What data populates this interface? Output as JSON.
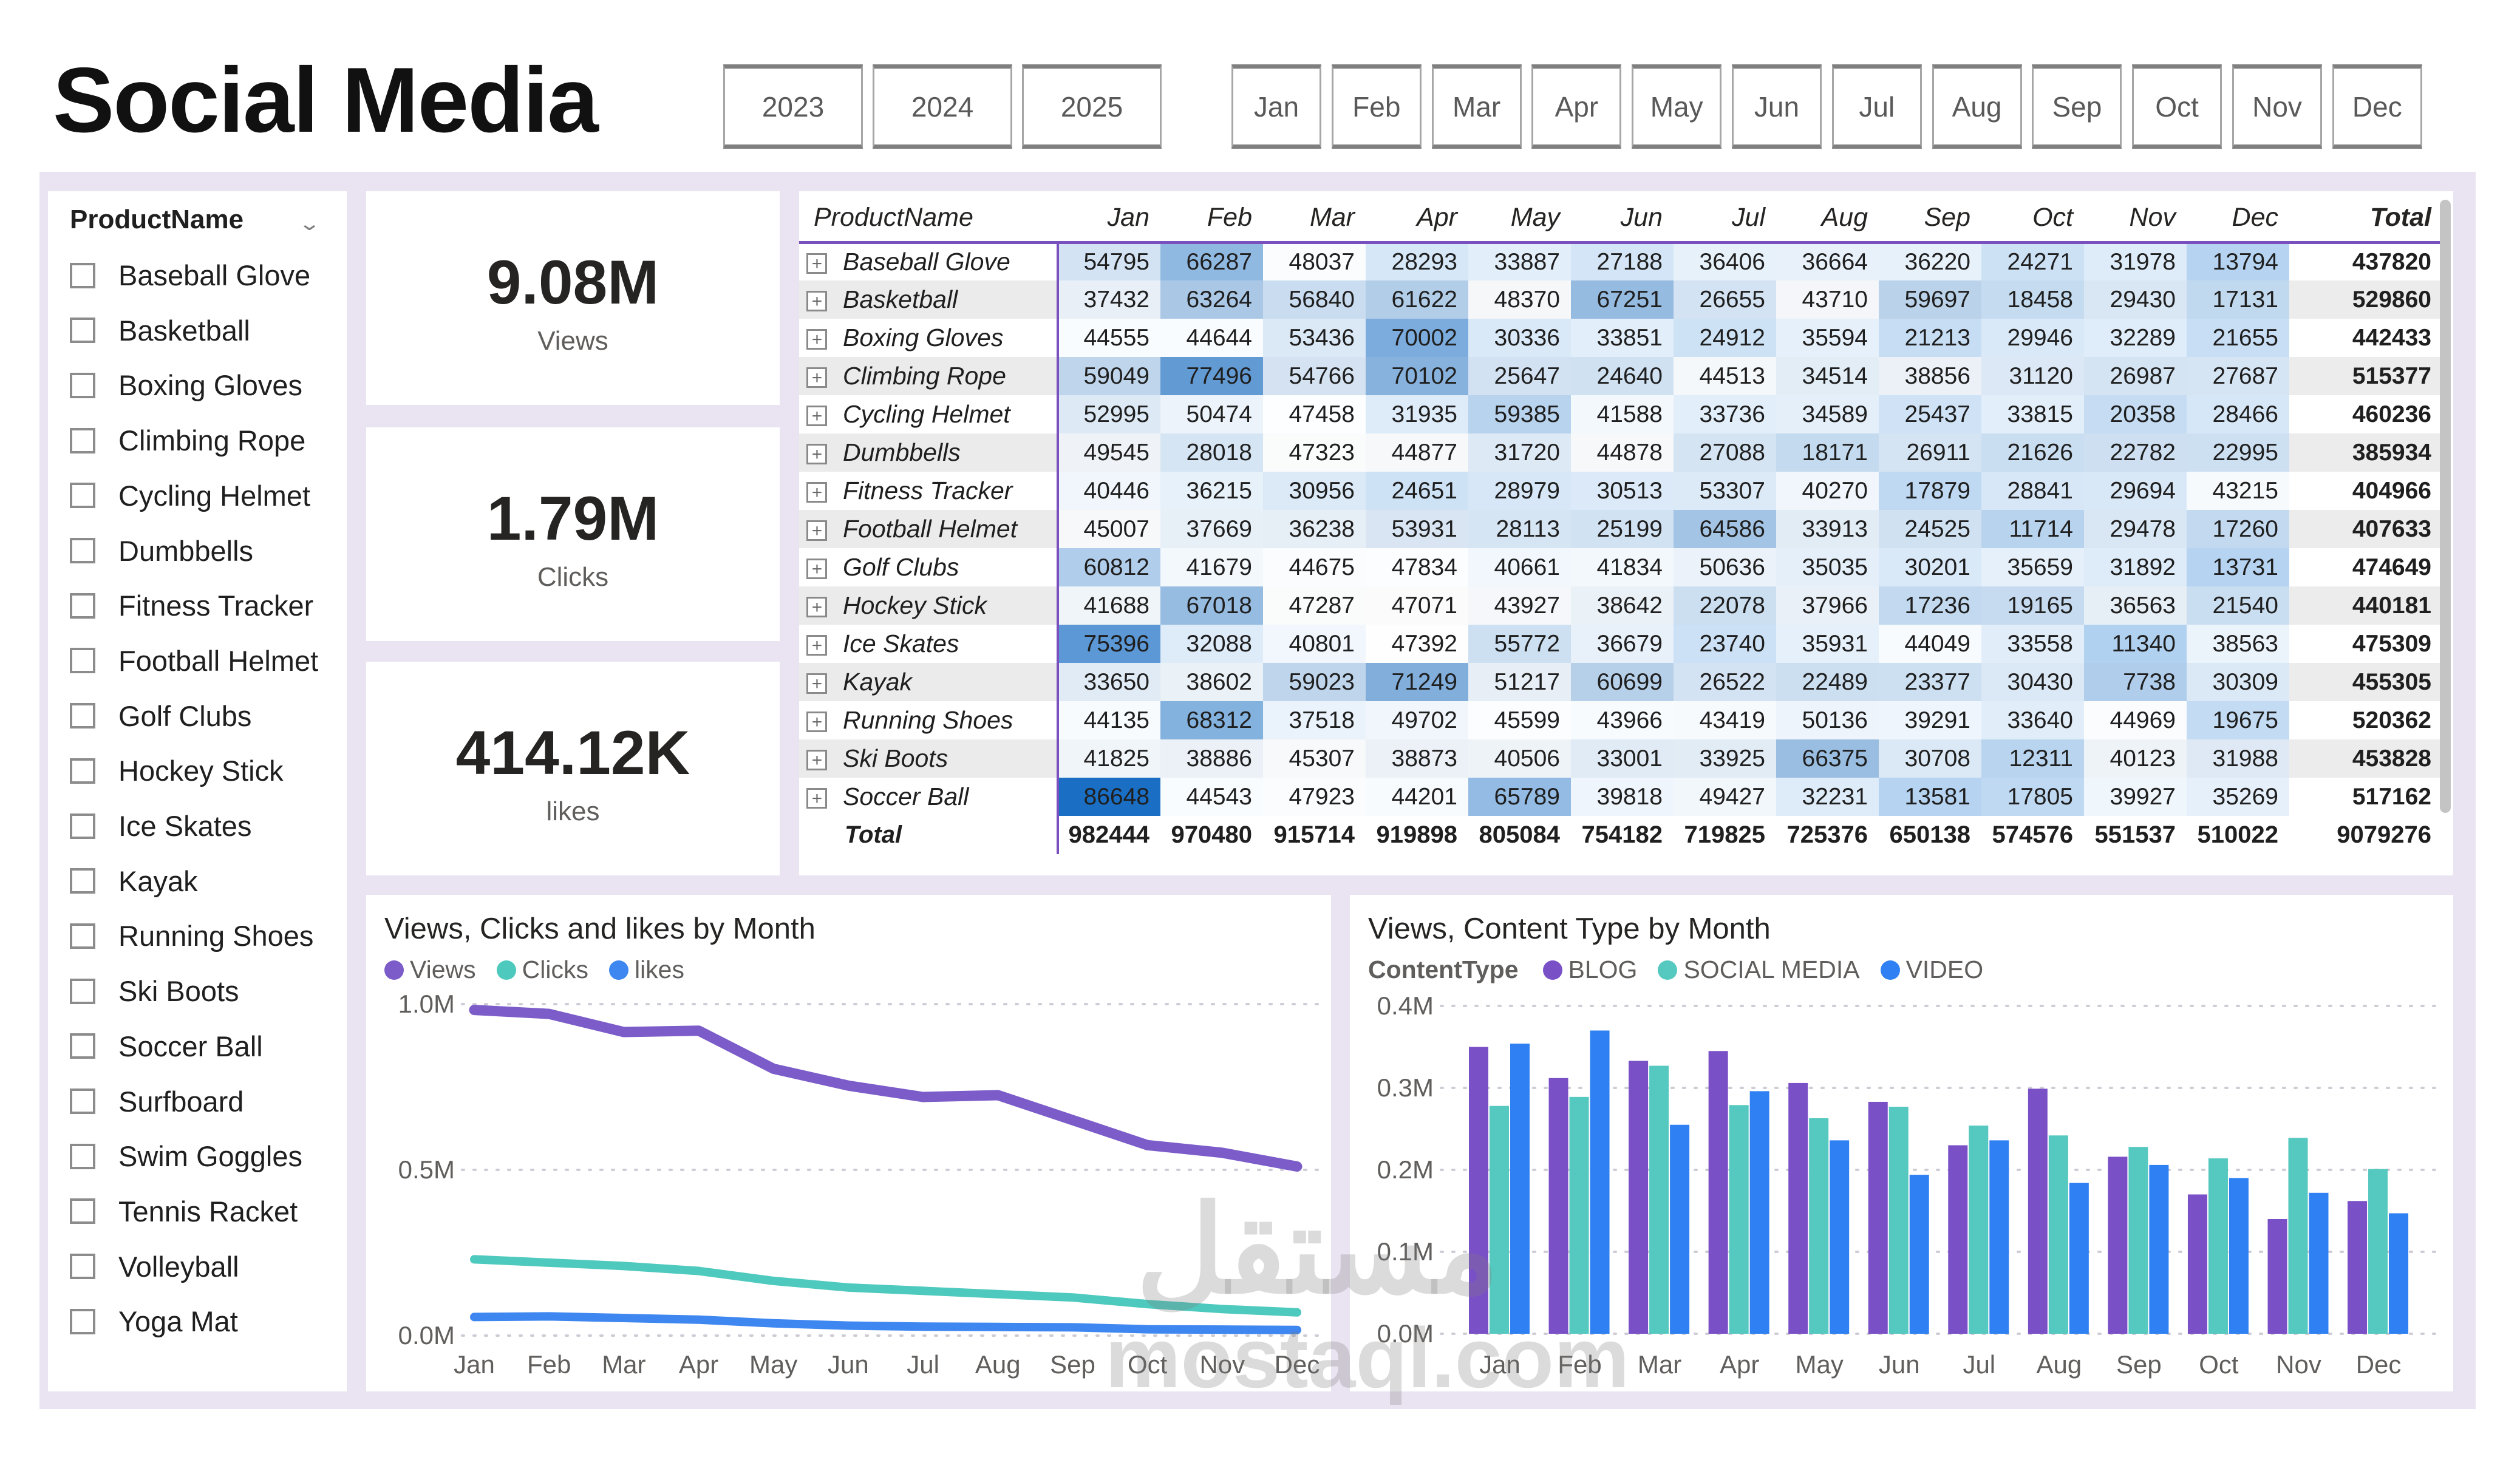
{
  "title": "Social Media",
  "filters": {
    "years": [
      "2023",
      "2024",
      "2025"
    ],
    "months": [
      "Jan",
      "Feb",
      "Mar",
      "Apr",
      "May",
      "Jun",
      "Jul",
      "Aug",
      "Sep",
      "Oct",
      "Nov",
      "Dec"
    ]
  },
  "slicer": {
    "header": "ProductName",
    "items": [
      "Baseball Glove",
      "Basketball",
      "Boxing Gloves",
      "Climbing Rope",
      "Cycling Helmet",
      "Dumbbells",
      "Fitness Tracker",
      "Football Helmet",
      "Golf Clubs",
      "Hockey Stick",
      "Ice Skates",
      "Kayak",
      "Running Shoes",
      "Ski Boots",
      "Soccer Ball",
      "Surfboard",
      "Swim Goggles",
      "Tennis Racket",
      "Volleyball",
      "Yoga Mat"
    ]
  },
  "kpis": [
    {
      "value": "9.08M",
      "label": "Views"
    },
    {
      "value": "1.79M",
      "label": "Clicks"
    },
    {
      "value": "414.12K",
      "label": "likes"
    }
  ],
  "matrix": {
    "row_header": "ProductName",
    "columns": [
      "Jan",
      "Feb",
      "Mar",
      "Apr",
      "May",
      "Jun",
      "Jul",
      "Aug",
      "Sep",
      "Oct",
      "Nov",
      "Dec",
      "Total"
    ],
    "rows": [
      {
        "name": "Baseball Glove",
        "values": [
          54795,
          66287,
          48037,
          28293,
          33887,
          27188,
          36406,
          36664,
          36220,
          24271,
          31978,
          13794
        ],
        "total": 437820
      },
      {
        "name": "Basketball",
        "values": [
          37432,
          63264,
          56840,
          61622,
          48370,
          67251,
          26655,
          43710,
          59697,
          18458,
          29430,
          17131
        ],
        "total": 529860
      },
      {
        "name": "Boxing Gloves",
        "values": [
          44555,
          44644,
          53436,
          70002,
          30336,
          33851,
          24912,
          35594,
          21213,
          29946,
          32289,
          21655
        ],
        "total": 442433
      },
      {
        "name": "Climbing Rope",
        "values": [
          59049,
          77496,
          54766,
          70102,
          25647,
          24640,
          44513,
          34514,
          38856,
          31120,
          26987,
          27687
        ],
        "total": 515377
      },
      {
        "name": "Cycling Helmet",
        "values": [
          52995,
          50474,
          47458,
          31935,
          59385,
          41588,
          33736,
          34589,
          25437,
          33815,
          20358,
          28466
        ],
        "total": 460236
      },
      {
        "name": "Dumbbells",
        "values": [
          49545,
          28018,
          47323,
          44877,
          31720,
          44878,
          27088,
          18171,
          26911,
          21626,
          22782,
          22995
        ],
        "total": 385934
      },
      {
        "name": "Fitness Tracker",
        "values": [
          40446,
          36215,
          30956,
          24651,
          28979,
          30513,
          53307,
          40270,
          17879,
          28841,
          29694,
          43215
        ],
        "total": 404966
      },
      {
        "name": "Football Helmet",
        "values": [
          45007,
          37669,
          36238,
          53931,
          28113,
          25199,
          64586,
          33913,
          24525,
          11714,
          29478,
          17260
        ],
        "total": 407633
      },
      {
        "name": "Golf Clubs",
        "values": [
          60812,
          41679,
          44675,
          47834,
          40661,
          41834,
          50636,
          35035,
          30201,
          35659,
          31892,
          13731
        ],
        "total": 474649
      },
      {
        "name": "Hockey Stick",
        "values": [
          41688,
          67018,
          47287,
          47071,
          43927,
          38642,
          22078,
          37966,
          17236,
          19165,
          36563,
          21540
        ],
        "total": 440181
      },
      {
        "name": "Ice Skates",
        "values": [
          75396,
          32088,
          40801,
          47392,
          55772,
          36679,
          23740,
          35931,
          44049,
          33558,
          11340,
          38563
        ],
        "total": 475309
      },
      {
        "name": "Kayak",
        "values": [
          33650,
          38602,
          59023,
          71249,
          51217,
          60699,
          26522,
          22489,
          23377,
          30430,
          7738,
          30309
        ],
        "total": 455305
      },
      {
        "name": "Running Shoes",
        "values": [
          44135,
          68312,
          37518,
          49702,
          45599,
          43966,
          43419,
          50136,
          39291,
          33640,
          44969,
          19675
        ],
        "total": 520362
      },
      {
        "name": "Ski Boots",
        "values": [
          41825,
          38886,
          45307,
          38873,
          40506,
          33001,
          33925,
          66375,
          30708,
          12311,
          40123,
          31988
        ],
        "total": 453828
      },
      {
        "name": "Soccer Ball",
        "values": [
          86648,
          44543,
          47923,
          44201,
          65789,
          39818,
          49427,
          32231,
          13581,
          17805,
          39927,
          35269
        ],
        "total": 517162
      }
    ],
    "totals": {
      "label": "Total",
      "values": [
        982444,
        970480,
        915714,
        919898,
        805084,
        754182,
        719825,
        725376,
        650138,
        574576,
        551537,
        510022
      ],
      "total": 9079276
    }
  },
  "chart_data": [
    {
      "type": "line",
      "title": "Views, Clicks and likes by Month",
      "x": [
        "Jan",
        "Feb",
        "Mar",
        "Apr",
        "May",
        "Jun",
        "Jul",
        "Aug",
        "Sep",
        "Oct",
        "Nov",
        "Dec"
      ],
      "series": [
        {
          "name": "Views",
          "color": "#7b5cc9",
          "values": [
            982444,
            970480,
            915714,
            919898,
            805084,
            754182,
            719825,
            725376,
            650138,
            574576,
            551537,
            510022
          ]
        },
        {
          "name": "Clicks",
          "color": "#4ec9be",
          "values": [
            230000,
            220000,
            210000,
            195000,
            165000,
            145000,
            135000,
            125000,
            115000,
            95000,
            80000,
            70000
          ]
        },
        {
          "name": "likes",
          "color": "#3e86f0",
          "values": [
            56000,
            58000,
            53000,
            48000,
            37000,
            30000,
            27000,
            26000,
            25000,
            19000,
            18000,
            17000
          ]
        }
      ],
      "ylim": [
        0,
        1000000
      ],
      "ytick_labels": [
        "1.0M",
        "0.5M",
        "0.0M"
      ],
      "grid": "dotted",
      "legend_position": "top"
    },
    {
      "type": "bar",
      "title": "Views, Content Type by Month",
      "legend_label": "ContentType",
      "categories": [
        "Jan",
        "Feb",
        "Mar",
        "Apr",
        "May",
        "Jun",
        "Jul",
        "Aug",
        "Sep",
        "Oct",
        "Nov",
        "Dec"
      ],
      "series": [
        {
          "name": "BLOG",
          "color": "#7a50c7",
          "values": [
            350000,
            312000,
            333000,
            345000,
            306000,
            283000,
            230000,
            299000,
            216000,
            170000,
            140000,
            162000
          ]
        },
        {
          "name": "SOCIAL MEDIA",
          "color": "#55c8bf",
          "values": [
            278000,
            289000,
            327000,
            279000,
            263000,
            277000,
            254000,
            242000,
            228000,
            214000,
            239000,
            201000
          ]
        },
        {
          "name": "VIDEO",
          "color": "#2f80f2",
          "values": [
            354000,
            370000,
            255000,
            296000,
            236000,
            194000,
            236000,
            184000,
            206000,
            190000,
            172000,
            147000
          ]
        }
      ],
      "ylim": [
        0,
        400000
      ],
      "ytick_labels": [
        "0.4M",
        "0.3M",
        "0.2M",
        "0.1M",
        "0.0M"
      ],
      "grid": "dotted",
      "legend_position": "top"
    }
  ],
  "watermark": {
    "line1": "مستقل",
    "line2": "mostaql.com"
  },
  "colors": {
    "canvas": "#eae4f2",
    "accent_purple": "#7a4fbe",
    "heat_high": "#1a6fc4",
    "heat_low": "#a9ccee",
    "grid_dotted": "#cfccd6",
    "tick_text": "#605e5c"
  }
}
